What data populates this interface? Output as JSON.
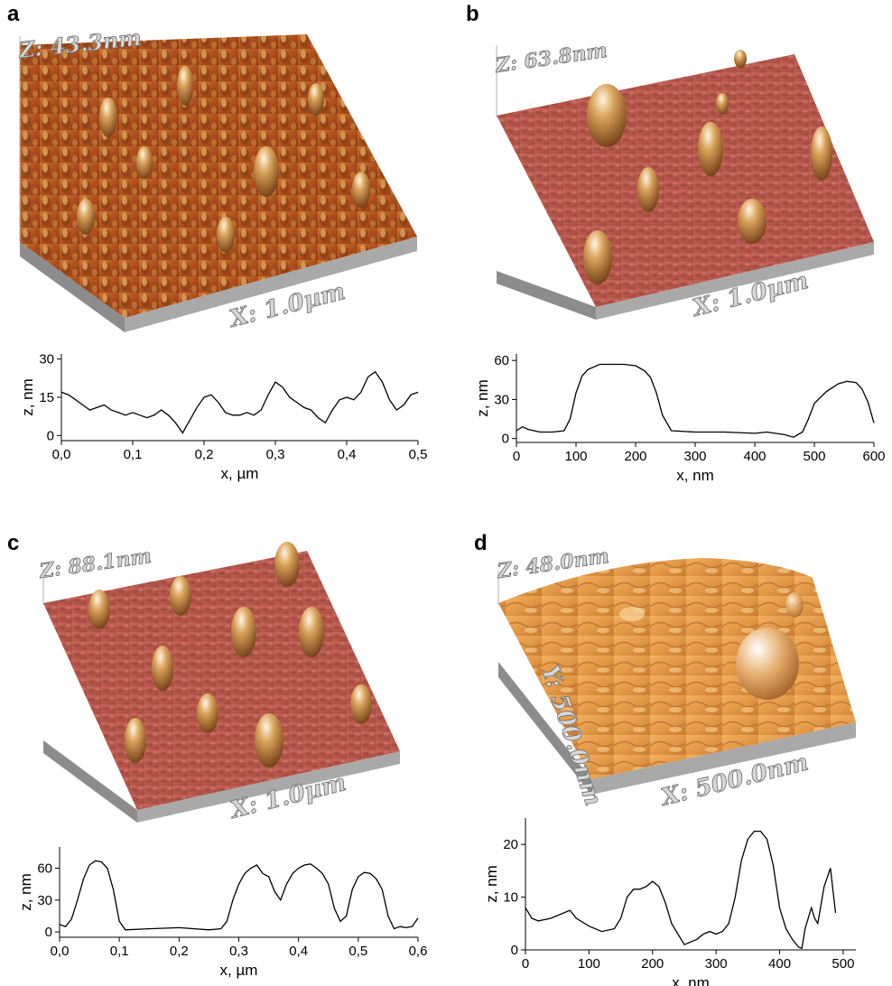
{
  "panels": {
    "a": {
      "letter": "a",
      "z_label": "Z: 43.3nm",
      "x_label": "X: 1.0µm"
    },
    "b": {
      "letter": "b",
      "z_label": "Z: 63.8nm",
      "x_label": "X: 1.0µm"
    },
    "c": {
      "letter": "c",
      "z_label": "Z: 88.1nm",
      "x_label": "X: 1.0µm"
    },
    "d": {
      "letter": "d",
      "z_label": "Z: 48.0nm",
      "x_label": "X: 500.0nm",
      "y_label": "Y: 500.0nm"
    }
  },
  "chart_data": [
    {
      "type": "line",
      "panel": "a",
      "xlabel": "x, µm",
      "ylabel": "z, nm",
      "xlim": [
        0,
        0.5
      ],
      "ylim": [
        -2,
        32
      ],
      "xticks": [
        0,
        0.1,
        0.2,
        0.3,
        0.4,
        0.5
      ],
      "xtick_labels": [
        "0,0",
        "0,1",
        "0,2",
        "0,3",
        "0,4",
        "0,5"
      ],
      "yticks": [
        0,
        15,
        30
      ],
      "ytick_labels": [
        "0",
        "15",
        "30"
      ],
      "x": [
        0,
        0.01,
        0.02,
        0.03,
        0.04,
        0.05,
        0.06,
        0.07,
        0.08,
        0.09,
        0.1,
        0.11,
        0.12,
        0.13,
        0.14,
        0.15,
        0.16,
        0.17,
        0.18,
        0.19,
        0.2,
        0.21,
        0.22,
        0.23,
        0.24,
        0.25,
        0.26,
        0.27,
        0.28,
        0.29,
        0.3,
        0.31,
        0.32,
        0.33,
        0.34,
        0.35,
        0.36,
        0.37,
        0.38,
        0.39,
        0.4,
        0.41,
        0.42,
        0.43,
        0.44,
        0.45,
        0.46,
        0.47,
        0.48,
        0.49,
        0.5
      ],
      "y": [
        17,
        16,
        14,
        12,
        10,
        11,
        12,
        10,
        9,
        8,
        9,
        8,
        7,
        8,
        10,
        8,
        5,
        1,
        6,
        11,
        15,
        16,
        13,
        9,
        8,
        8,
        9,
        8,
        10,
        16,
        21,
        19,
        15,
        13,
        11,
        10,
        7,
        5,
        10,
        14,
        15,
        14,
        17,
        23,
        25,
        21,
        14,
        10,
        12,
        16,
        17
      ]
    },
    {
      "type": "line",
      "panel": "b",
      "xlabel": "x, nm",
      "ylabel": "z, nm",
      "xlim": [
        0,
        600
      ],
      "ylim": [
        -3,
        65
      ],
      "xticks": [
        0,
        100,
        200,
        300,
        400,
        500,
        600
      ],
      "xtick_labels": [
        "0",
        "100",
        "200",
        "300",
        "400",
        "500",
        "600"
      ],
      "yticks": [
        0,
        30,
        60
      ],
      "ytick_labels": [
        "0",
        "30",
        "60"
      ],
      "x": [
        0,
        10,
        20,
        40,
        60,
        80,
        90,
        100,
        110,
        120,
        140,
        160,
        180,
        200,
        215,
        225,
        235,
        245,
        260,
        300,
        350,
        400,
        420,
        450,
        465,
        480,
        490,
        500,
        520,
        540,
        555,
        570,
        580,
        590,
        600
      ],
      "y": [
        6,
        9,
        7,
        5,
        5,
        6,
        15,
        35,
        48,
        53,
        57,
        57,
        57,
        56,
        52,
        47,
        35,
        18,
        6,
        5,
        5,
        4,
        5,
        3,
        1,
        5,
        15,
        27,
        36,
        42,
        44,
        43,
        38,
        28,
        12
      ]
    },
    {
      "type": "line",
      "panel": "c",
      "xlabel": "x, µm",
      "ylabel": "z, nm",
      "xlim": [
        0,
        0.6
      ],
      "ylim": [
        -5,
        80
      ],
      "xticks": [
        0,
        0.1,
        0.2,
        0.3,
        0.4,
        0.5,
        0.6
      ],
      "xtick_labels": [
        "0,0",
        "0,1",
        "0,2",
        "0,3",
        "0,4",
        "0,5",
        "0,6"
      ],
      "yticks": [
        0,
        30,
        60
      ],
      "ytick_labels": [
        "0",
        "30",
        "60"
      ],
      "x": [
        0,
        0.01,
        0.02,
        0.03,
        0.04,
        0.05,
        0.06,
        0.07,
        0.08,
        0.09,
        0.1,
        0.11,
        0.15,
        0.2,
        0.25,
        0.27,
        0.28,
        0.29,
        0.3,
        0.31,
        0.32,
        0.33,
        0.34,
        0.35,
        0.36,
        0.37,
        0.38,
        0.39,
        0.4,
        0.41,
        0.42,
        0.43,
        0.44,
        0.45,
        0.46,
        0.47,
        0.48,
        0.49,
        0.5,
        0.51,
        0.52,
        0.53,
        0.54,
        0.55,
        0.56,
        0.57,
        0.58,
        0.59,
        0.6
      ],
      "y": [
        7,
        5,
        12,
        30,
        50,
        63,
        67,
        66,
        60,
        40,
        10,
        2,
        3,
        4,
        2,
        3,
        10,
        30,
        45,
        55,
        60,
        63,
        55,
        52,
        38,
        30,
        45,
        55,
        60,
        63,
        64,
        60,
        55,
        45,
        22,
        10,
        15,
        40,
        52,
        56,
        55,
        50,
        40,
        15,
        3,
        5,
        4,
        5,
        13
      ]
    },
    {
      "type": "line",
      "panel": "d",
      "xlabel": "x, nm",
      "ylabel": "z, nm",
      "xlim": [
        0,
        520
      ],
      "ylim": [
        0,
        25
      ],
      "xticks": [
        0,
        100,
        200,
        300,
        400,
        500
      ],
      "xtick_labels": [
        "0",
        "100",
        "200",
        "300",
        "400",
        "500"
      ],
      "yticks": [
        0,
        10,
        20
      ],
      "ytick_labels": [
        "0",
        "10",
        "20"
      ],
      "x": [
        0,
        10,
        20,
        40,
        60,
        70,
        80,
        100,
        120,
        140,
        150,
        160,
        170,
        180,
        190,
        200,
        210,
        220,
        230,
        240,
        250,
        260,
        270,
        280,
        290,
        300,
        310,
        320,
        330,
        340,
        350,
        360,
        370,
        380,
        390,
        400,
        410,
        420,
        430,
        435,
        440,
        450,
        455,
        460,
        470,
        480,
        488
      ],
      "y": [
        8,
        6,
        5.5,
        6,
        7,
        7.5,
        6,
        4.5,
        3.5,
        4,
        6,
        10,
        11.5,
        11.5,
        12,
        13,
        12,
        9,
        5,
        3,
        1,
        1.5,
        2,
        3,
        3.5,
        3,
        3.5,
        5,
        10,
        17,
        21,
        22.5,
        22.5,
        21,
        16,
        8,
        4,
        2,
        0.5,
        0.3,
        4,
        8,
        6,
        5,
        12,
        15.5,
        7
      ]
    }
  ]
}
